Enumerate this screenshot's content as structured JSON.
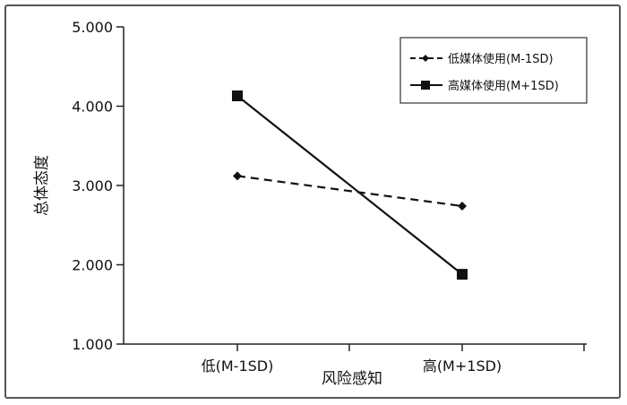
{
  "chart_data": {
    "type": "line",
    "title": "",
    "xlabel": "风险感知",
    "ylabel": "总体态度",
    "categories": [
      "低(M-1SD)",
      "高(M+1SD)"
    ],
    "y_ticks": [
      "1.000",
      "2.000",
      "3.000",
      "4.000",
      "5.000"
    ],
    "ylim": [
      1,
      5
    ],
    "grid": false,
    "legend_position": "top-right",
    "series": [
      {
        "name": "低媒体使用(M-1SD)",
        "values": [
          3.12,
          2.74
        ],
        "line_style": "dashed",
        "marker": "diamond",
        "color": "#111111"
      },
      {
        "name": "高媒体使用(M+1SD)",
        "values": [
          4.13,
          1.88
        ],
        "line_style": "solid",
        "marker": "square",
        "color": "#111111"
      }
    ]
  }
}
